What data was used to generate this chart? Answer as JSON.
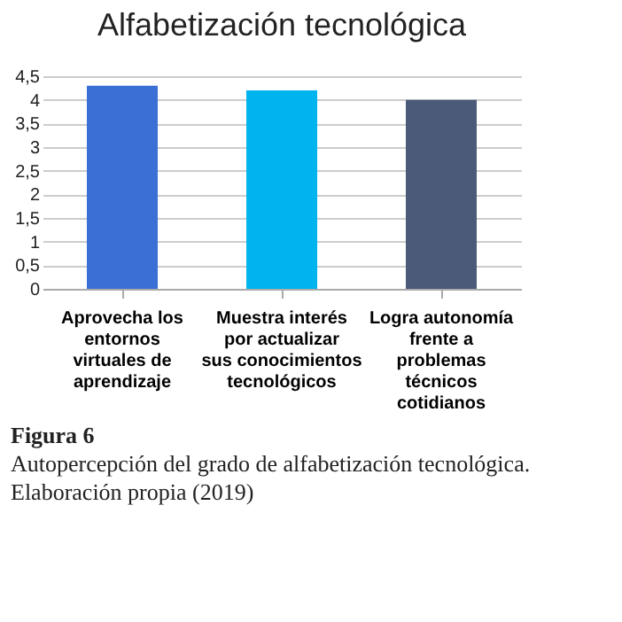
{
  "chart_data": {
    "type": "bar",
    "title": "Alfabetización tecnológica",
    "categories": [
      "Aprovecha los entornos virtuales de aprendizaje",
      "Muestra interés por actualizar sus conocimientos tecnológicos",
      "Logra autonomía frente a problemas técnicos cotidianos"
    ],
    "values": [
      4.3,
      4.2,
      4.0
    ],
    "colors": [
      "#3b6fd6",
      "#00b4ef",
      "#4a5a78"
    ],
    "ylim": [
      0,
      4.5
    ],
    "yticks": [
      0,
      {
        "value": 0.5,
        "label": "0,5"
      },
      1,
      {
        "value": 1.5,
        "label": "1,5"
      },
      2,
      {
        "value": 2.5,
        "label": "2,5"
      },
      3,
      {
        "value": 3.5,
        "label": "3,5"
      },
      4,
      {
        "value": 4.5,
        "label": "4,5"
      }
    ],
    "grid": "y",
    "annotations": [
      "Figura 6",
      "Autopercepción del grado de alfabetización tecnológica. Elaboración propia (2019)"
    ]
  }
}
